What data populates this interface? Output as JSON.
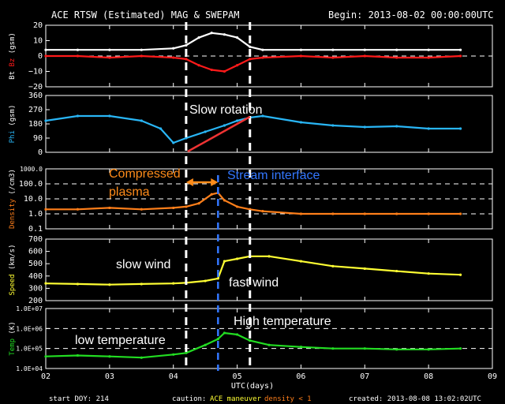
{
  "header": {
    "title": "ACE RTSW (Estimated) MAG & SWEPAM",
    "begin_label": "Begin: 2013-08-02 00:00:00UTC"
  },
  "footer": {
    "start_doy": "start DOY: 214",
    "caution_label": "caution:",
    "ace_maneuver": "ACE maneuver",
    "density_note": "density < 1",
    "created": "created: 2013-08-08 13:02:02UTC"
  },
  "colors": {
    "bt": "#ffffff",
    "bz": "#ff1a1a",
    "phi": "#29b6f6",
    "density": "#ff7f1a",
    "speed": "#ffff33",
    "temp": "#22dd22",
    "axis": "#ffffff",
    "ann_orange": "#ff8c1a",
    "ann_blue": "#3377ff",
    "rotation_line": "#ee3333"
  },
  "chart_data": {
    "type": "line",
    "title": "ACE RTSW (Estimated) MAG & SWEPAM",
    "xlabel": "UTC(days)",
    "x_range": [
      2,
      9
    ],
    "x_ticks": [
      "02",
      "03",
      "04",
      "05",
      "06",
      "07",
      "08",
      "09"
    ],
    "events_day": [
      4.2,
      5.2
    ],
    "stream_interface_day": 4.7,
    "panels": [
      {
        "id": "mag",
        "ylabel_parts": [
          "Bt",
          "Bz",
          "(gsm)"
        ],
        "ylim": [
          -20,
          20
        ],
        "yticks": [
          "20",
          "10",
          "0",
          "−10",
          "−20"
        ],
        "series": [
          {
            "name": "Bt",
            "key": "bt",
            "x": [
              2.0,
              2.5,
              3.0,
              3.5,
              4.0,
              4.2,
              4.4,
              4.6,
              4.8,
              5.0,
              5.2,
              5.4,
              6.0,
              6.5,
              7.0,
              7.5,
              8.0,
              8.5
            ],
            "y": [
              4,
              4,
              4,
              4,
              5,
              7,
              12,
              15,
              14,
              12,
              6,
              4,
              4,
              4,
              4,
              4,
              4,
              4
            ]
          },
          {
            "name": "Bz",
            "key": "bz",
            "x": [
              2.0,
              2.5,
              3.0,
              3.5,
              4.0,
              4.2,
              4.4,
              4.6,
              4.8,
              5.0,
              5.2,
              5.4,
              6.0,
              6.5,
              7.0,
              7.5,
              8.0,
              8.5
            ],
            "y": [
              0,
              0,
              -1,
              0,
              -1,
              -2,
              -6,
              -9,
              -10,
              -6,
              -2,
              -1,
              0,
              -1,
              0,
              -1,
              -1,
              0
            ]
          }
        ]
      },
      {
        "id": "phi",
        "ylabel_parts": [
          "Phi",
          "(gsm)"
        ],
        "ylim": [
          0,
          360
        ],
        "yticks": [
          "360",
          "270",
          "180",
          "90",
          "0"
        ],
        "series": [
          {
            "name": "Phi",
            "key": "phi",
            "x": [
              2.0,
              2.5,
              3.0,
              3.5,
              3.8,
              4.0,
              4.2,
              4.5,
              4.8,
              5.0,
              5.2,
              5.4,
              6.0,
              6.5,
              7.0,
              7.5,
              8.0,
              8.5
            ],
            "y": [
              200,
              230,
              230,
              200,
              150,
              60,
              90,
              130,
              170,
              200,
              220,
              230,
              190,
              170,
              160,
              165,
              150,
              150
            ]
          }
        ]
      },
      {
        "id": "density",
        "ylabel_parts": [
          "Density",
          "(/cm3)"
        ],
        "ylim_log10": [
          -1,
          3
        ],
        "yticks": [
          "1000.0",
          "100.0",
          "10.0",
          "1.0",
          "0.1"
        ],
        "series": [
          {
            "name": "Density",
            "key": "density",
            "x": [
              2.0,
              2.5,
              3.0,
              3.5,
              4.0,
              4.2,
              4.4,
              4.6,
              4.7,
              4.8,
              5.0,
              5.2,
              5.4,
              6.0,
              6.5,
              7.0,
              7.5,
              8.0,
              8.5
            ],
            "y": [
              2,
              2,
              2.5,
              2,
              2.5,
              3,
              5,
              20,
              25,
              8,
              3,
              2,
              1.5,
              1,
              1,
              1,
              1,
              1,
              1
            ]
          }
        ]
      },
      {
        "id": "speed",
        "ylabel_parts": [
          "Speed",
          "(km/s)"
        ],
        "ylim": [
          200,
          700
        ],
        "yticks": [
          "700",
          "600",
          "500",
          "400",
          "300",
          "200"
        ],
        "series": [
          {
            "name": "Speed",
            "key": "speed",
            "x": [
              2.0,
              2.5,
              3.0,
              3.5,
              4.0,
              4.2,
              4.5,
              4.7,
              4.8,
              5.0,
              5.2,
              5.5,
              6.0,
              6.5,
              7.0,
              7.5,
              8.0,
              8.5
            ],
            "y": [
              340,
              335,
              330,
              335,
              340,
              345,
              360,
              380,
              520,
              540,
              560,
              560,
              520,
              480,
              460,
              440,
              420,
              410
            ]
          }
        ]
      },
      {
        "id": "temp",
        "ylabel_parts": [
          "Temp",
          "(K)"
        ],
        "ylim_log10": [
          4,
          7
        ],
        "yticks": [
          "1.0E+07",
          "1.0E+06",
          "1.0E+05",
          "1.0E+04"
        ],
        "series": [
          {
            "name": "Temp",
            "key": "temp",
            "x": [
              2.0,
              2.5,
              3.0,
              3.5,
              4.0,
              4.2,
              4.5,
              4.7,
              4.8,
              5.0,
              5.2,
              5.5,
              6.0,
              6.5,
              7.0,
              7.5,
              8.0,
              8.5
            ],
            "y": [
              40000,
              45000,
              40000,
              35000,
              50000,
              60000,
              150000,
              300000,
              600000,
              500000,
              250000,
              150000,
              120000,
              100000,
              100000,
              90000,
              90000,
              100000
            ]
          }
        ]
      }
    ],
    "annotations": [
      {
        "text": "Slow rotation",
        "color": "white"
      },
      {
        "text": "Compressed",
        "color": "orange"
      },
      {
        "text": "plasma",
        "color": "orange"
      },
      {
        "text": "Stream interface",
        "color": "blue"
      },
      {
        "text": "slow wind",
        "color": "white"
      },
      {
        "text": "fast wind",
        "color": "white"
      },
      {
        "text": "High temperature",
        "color": "white"
      },
      {
        "text": "low temperature",
        "color": "white"
      }
    ]
  }
}
